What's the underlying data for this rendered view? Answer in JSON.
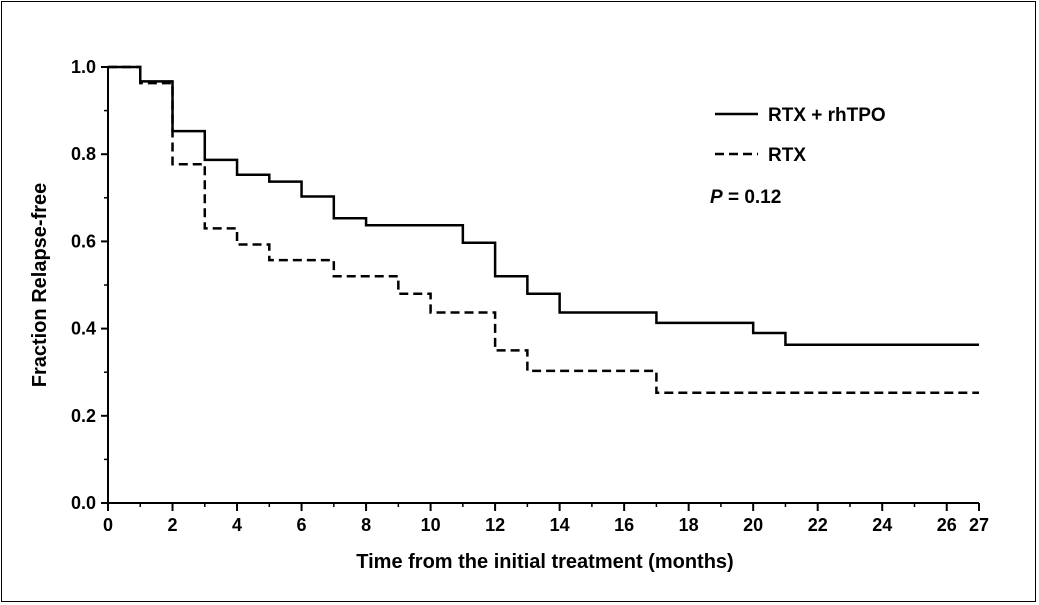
{
  "chart_data": {
    "type": "line",
    "subtype": "kaplan-meier-step",
    "xlabel": "Time from the initial treatment (months)",
    "ylabel": "Fraction Relapse-free",
    "xlim": [
      0,
      27
    ],
    "ylim": [
      0,
      1.0
    ],
    "x_ticks": [
      0,
      2,
      4,
      6,
      8,
      10,
      12,
      14,
      16,
      18,
      20,
      22,
      24,
      26,
      27
    ],
    "y_ticks": [
      0.0,
      0.2,
      0.4,
      0.6,
      0.8,
      1.0
    ],
    "x_tick_labels": [
      "0",
      "2",
      "4",
      "6",
      "8",
      "10",
      "12",
      "14",
      "16",
      "18",
      "20",
      "22",
      "24",
      "26",
      "27"
    ],
    "y_tick_labels": [
      "0.0",
      "0.2",
      "0.4",
      "0.6",
      "0.8",
      "1.0"
    ],
    "grid": false,
    "legend_position": "top-right",
    "series": [
      {
        "name": "RTX + rhTPO",
        "line_style": "solid",
        "color": "#000000",
        "x": [
          0,
          1,
          2,
          3,
          4,
          5,
          6,
          7,
          8,
          11,
          12,
          13,
          14,
          17,
          20,
          21,
          27
        ],
        "y": [
          1.0,
          0.967,
          0.853,
          0.787,
          0.753,
          0.737,
          0.703,
          0.653,
          0.637,
          0.597,
          0.52,
          0.48,
          0.437,
          0.413,
          0.39,
          0.363,
          0.363
        ]
      },
      {
        "name": "RTX",
        "line_style": "dashed",
        "color": "#000000",
        "x": [
          0,
          1,
          2,
          3,
          4,
          5,
          7,
          9,
          10,
          12,
          13,
          17,
          27
        ],
        "y": [
          1.0,
          0.963,
          0.777,
          0.63,
          0.593,
          0.557,
          0.52,
          0.48,
          0.437,
          0.35,
          0.303,
          0.253,
          0.253
        ]
      }
    ],
    "annotation": {
      "p_symbol": "P",
      "p_value_text": " = 0.12"
    }
  }
}
